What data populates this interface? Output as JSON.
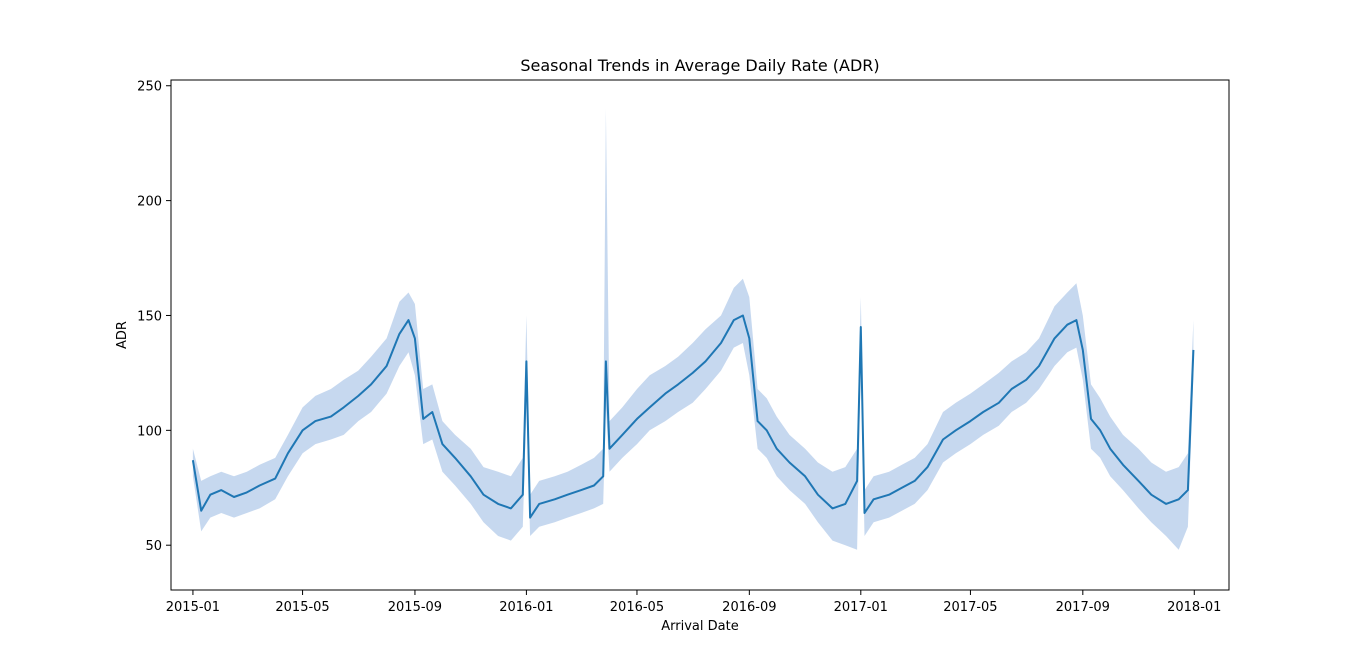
{
  "chart_data": {
    "type": "line",
    "title": "Seasonal Trends in Average Daily Rate (ADR)",
    "xlabel": "Arrival Date",
    "ylabel": "ADR",
    "x_tick_labels": [
      "2015-01",
      "2015-05",
      "2015-09",
      "2016-01",
      "2016-05",
      "2016-09",
      "2017-01",
      "2017-05",
      "2017-09",
      "2018-01"
    ],
    "y_tick_labels": [
      "50",
      "100",
      "150",
      "200",
      "250"
    ],
    "y_ticks": [
      50,
      100,
      150,
      200,
      250
    ],
    "xlim": [
      "2014-12-08",
      "2018-02-08"
    ],
    "ylim": [
      30.5,
      252.5
    ],
    "grid": false,
    "legend": "none",
    "series": [
      {
        "color": "#1f77b4",
        "band_color": "#aec7e8",
        "x": [
          "2015-01-01",
          "2015-01-10",
          "2015-01-20",
          "2015-02-01",
          "2015-02-15",
          "2015-03-01",
          "2015-03-15",
          "2015-04-01",
          "2015-04-15",
          "2015-05-01",
          "2015-05-15",
          "2015-06-01",
          "2015-06-15",
          "2015-07-01",
          "2015-07-15",
          "2015-08-01",
          "2015-08-15",
          "2015-08-25",
          "2015-09-01",
          "2015-09-10",
          "2015-09-20",
          "2015-10-01",
          "2015-10-15",
          "2015-11-01",
          "2015-11-15",
          "2015-12-01",
          "2015-12-15",
          "2015-12-28",
          "2016-01-01",
          "2016-01-05",
          "2016-01-15",
          "2016-02-01",
          "2016-02-15",
          "2016-03-01",
          "2016-03-15",
          "2016-03-25",
          "2016-03-28",
          "2016-04-01",
          "2016-04-15",
          "2016-05-01",
          "2016-05-15",
          "2016-06-01",
          "2016-06-15",
          "2016-07-01",
          "2016-07-15",
          "2016-08-01",
          "2016-08-15",
          "2016-08-25",
          "2016-09-01",
          "2016-09-10",
          "2016-09-20",
          "2016-10-01",
          "2016-10-15",
          "2016-11-01",
          "2016-11-15",
          "2016-12-01",
          "2016-12-15",
          "2016-12-28",
          "2017-01-01",
          "2017-01-05",
          "2017-01-15",
          "2017-02-01",
          "2017-02-15",
          "2017-03-01",
          "2017-03-15",
          "2017-04-01",
          "2017-04-15",
          "2017-05-01",
          "2017-05-15",
          "2017-06-01",
          "2017-06-15",
          "2017-07-01",
          "2017-07-15",
          "2017-08-01",
          "2017-08-15",
          "2017-08-25",
          "2017-09-01",
          "2017-09-10",
          "2017-09-20",
          "2017-10-01",
          "2017-10-15",
          "2017-11-01",
          "2017-11-15",
          "2017-12-01",
          "2017-12-15",
          "2017-12-25",
          "2017-12-31"
        ],
        "y": [
          87,
          65,
          72,
          74,
          71,
          73,
          76,
          79,
          90,
          100,
          104,
          106,
          110,
          115,
          120,
          128,
          142,
          148,
          140,
          105,
          108,
          94,
          88,
          80,
          72,
          68,
          66,
          72,
          130,
          62,
          68,
          70,
          72,
          74,
          76,
          80,
          130,
          92,
          98,
          105,
          110,
          116,
          120,
          125,
          130,
          138,
          148,
          150,
          140,
          104,
          100,
          92,
          86,
          80,
          72,
          66,
          68,
          78,
          145,
          64,
          70,
          72,
          75,
          78,
          84,
          96,
          100,
          104,
          108,
          112,
          118,
          122,
          128,
          140,
          146,
          148,
          135,
          105,
          100,
          92,
          85,
          78,
          72,
          68,
          70,
          74,
          135
        ],
        "upper": [
          92,
          78,
          80,
          82,
          80,
          82,
          85,
          88,
          98,
          110,
          115,
          118,
          122,
          126,
          132,
          140,
          156,
          160,
          155,
          118,
          120,
          104,
          98,
          92,
          84,
          82,
          80,
          88,
          150,
          72,
          78,
          80,
          82,
          85,
          88,
          92,
          240,
          104,
          110,
          118,
          124,
          128,
          132,
          138,
          144,
          150,
          162,
          166,
          158,
          118,
          114,
          106,
          98,
          92,
          86,
          82,
          84,
          92,
          158,
          74,
          80,
          82,
          85,
          88,
          94,
          108,
          112,
          116,
          120,
          125,
          130,
          134,
          140,
          154,
          160,
          164,
          150,
          120,
          114,
          106,
          98,
          92,
          86,
          82,
          84,
          90,
          148
        ],
        "lower": [
          80,
          56,
          62,
          64,
          62,
          64,
          66,
          70,
          80,
          90,
          94,
          96,
          98,
          104,
          108,
          116,
          128,
          134,
          124,
          94,
          96,
          82,
          76,
          68,
          60,
          54,
          52,
          58,
          110,
          54,
          58,
          60,
          62,
          64,
          66,
          68,
          110,
          82,
          88,
          94,
          100,
          104,
          108,
          112,
          118,
          126,
          136,
          138,
          124,
          92,
          88,
          80,
          74,
          68,
          60,
          52,
          50,
          48,
          132,
          54,
          60,
          62,
          65,
          68,
          74,
          86,
          90,
          94,
          98,
          102,
          108,
          112,
          118,
          128,
          134,
          136,
          122,
          92,
          88,
          80,
          74,
          66,
          60,
          54,
          48,
          58,
          124
        ]
      }
    ]
  }
}
